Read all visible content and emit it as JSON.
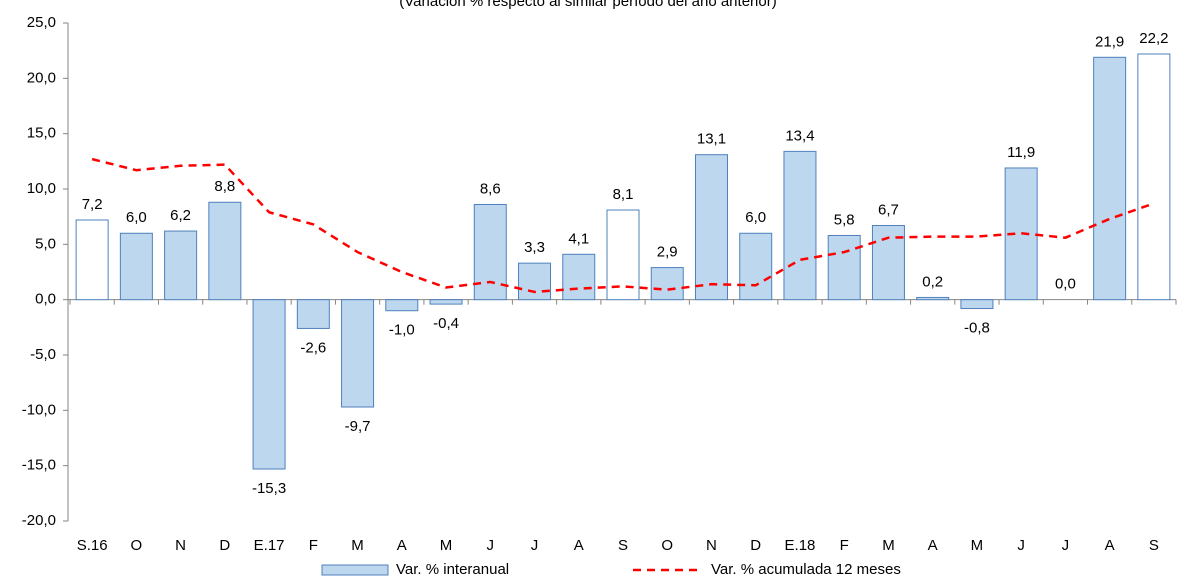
{
  "chart_data": {
    "type": "bar_line",
    "subtitle": "(Variación % respecto al similar período del año anterior)",
    "categories": [
      "S.16",
      "O",
      "N",
      "D",
      "E.17",
      "F",
      "M",
      "A",
      "M",
      "J",
      "J",
      "A",
      "S",
      "O",
      "N",
      "D",
      "E.18",
      "F",
      "M",
      "A",
      "M",
      "J",
      "J",
      "A",
      "S"
    ],
    "series": [
      {
        "name": "Var. % interanual",
        "type": "bar",
        "color": "#bdd7ee",
        "stroke": "#4f81bd",
        "point_colors": [
          "#ffffff",
          "#bdd7ee",
          "#bdd7ee",
          "#bdd7ee",
          "#bdd7ee",
          "#bdd7ee",
          "#bdd7ee",
          "#bdd7ee",
          "#bdd7ee",
          "#bdd7ee",
          "#bdd7ee",
          "#bdd7ee",
          "#ffffff",
          "#bdd7ee",
          "#bdd7ee",
          "#bdd7ee",
          "#bdd7ee",
          "#bdd7ee",
          "#bdd7ee",
          "#bdd7ee",
          "#bdd7ee",
          "#bdd7ee",
          "#bdd7ee",
          "#bdd7ee",
          "#ffffff"
        ],
        "values": [
          7.2,
          6.0,
          6.2,
          8.8,
          -15.3,
          -2.6,
          -9.7,
          -1.0,
          -0.4,
          8.6,
          3.3,
          4.1,
          8.1,
          2.9,
          13.1,
          6.0,
          13.4,
          5.8,
          6.7,
          0.2,
          -0.8,
          11.9,
          0.0,
          21.9,
          22.2
        ],
        "value_labels": [
          "7,2",
          "6,0",
          "6,2",
          "8,8",
          "-15,3",
          "-2,6",
          "-9,7",
          "-1,0",
          "-0,4",
          "8,6",
          "3,3",
          "4,1",
          "8,1",
          "2,9",
          "13,1",
          "6,0",
          "13,4",
          "5,8",
          "6,7",
          "0,2",
          "-0,8",
          "11,9",
          "0,0",
          "21,9",
          "22,2"
        ]
      },
      {
        "name": "Var. % acumulada 12 meses",
        "type": "line",
        "color": "#ff0000",
        "dashed": true,
        "values": [
          12.7,
          11.7,
          12.1,
          12.2,
          7.9,
          6.8,
          4.3,
          2.5,
          1.1,
          1.6,
          0.7,
          1.0,
          1.2,
          0.9,
          1.4,
          1.3,
          3.6,
          4.3,
          5.6,
          5.7,
          5.7,
          6.0,
          5.6,
          7.3,
          8.7
        ]
      }
    ],
    "ylim": [
      -20,
      25
    ],
    "yticks": [
      {
        "value": -20,
        "label": "-20,0"
      },
      {
        "value": -15,
        "label": "-15,0"
      },
      {
        "value": -10,
        "label": "-10,0"
      },
      {
        "value": -5,
        "label": "-5,0"
      },
      {
        "value": 0,
        "label": "0,0"
      },
      {
        "value": 5,
        "label": "5,0"
      },
      {
        "value": 10,
        "label": "10,0"
      },
      {
        "value": 15,
        "label": "15,0"
      },
      {
        "value": 20,
        "label": "20,0"
      },
      {
        "value": 25,
        "label": "25,0"
      }
    ],
    "grid": false
  }
}
